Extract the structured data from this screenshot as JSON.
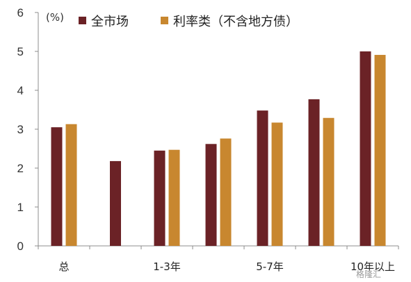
{
  "chart_data": {
    "type": "bar",
    "unit_label": "(%)",
    "categories": [
      "总",
      "",
      "1-3年",
      "",
      "5-7年",
      "",
      "10年以上"
    ],
    "series": [
      {
        "name": "全市场",
        "color": "#6B2226",
        "values": [
          3.05,
          2.18,
          2.45,
          2.62,
          3.48,
          3.77,
          5.0
        ]
      },
      {
        "name": "利率类（不含地方债）",
        "color": "#C8872F",
        "values": [
          3.13,
          null,
          2.47,
          2.76,
          3.17,
          3.29,
          4.91
        ]
      }
    ],
    "ylim": [
      0,
      6
    ],
    "yticks": [
      0,
      1,
      2,
      3,
      4,
      5,
      6
    ],
    "grid": false,
    "legend": "top"
  },
  "watermark": "格隆汇"
}
